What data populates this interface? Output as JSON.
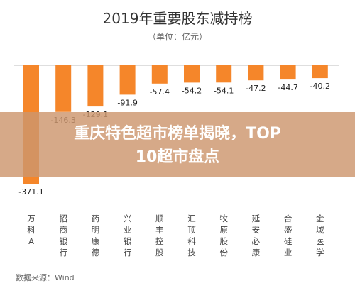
{
  "chart_data": {
    "type": "bar",
    "title": "2019年重要股东减持榜",
    "subtitle": "（单位：亿元）",
    "categories": [
      "万科A",
      "招商银行",
      "药明康德",
      "兴业银行",
      "顺丰控股",
      "汇顶科技",
      "牧原股份",
      "延安必康",
      "合盛硅业",
      "金域医学"
    ],
    "values": [
      -371.1,
      -146.3,
      -129.1,
      -91.9,
      -57.4,
      -54.2,
      -54.1,
      -47.2,
      -44.7,
      -40.2
    ],
    "ylim": [
      -400,
      0
    ],
    "grid": false,
    "bar_color": "#f5862a",
    "source": "数据来源：Wind"
  },
  "overlay": {
    "line1": "重庆特色超市榜单揭晓，TOP",
    "line2": "10超市盘点"
  }
}
